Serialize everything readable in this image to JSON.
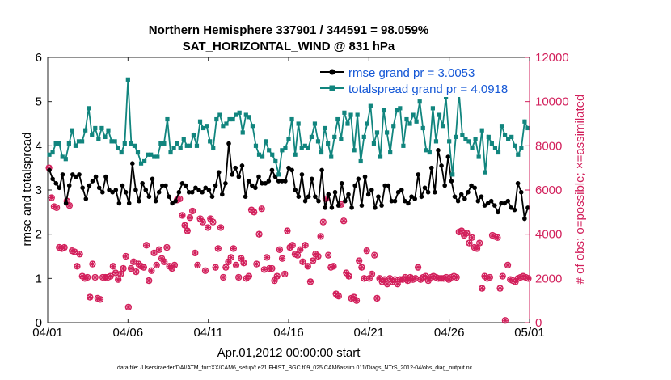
{
  "chart_data": {
    "type": "line",
    "title": [
      "Northern Hemisphere 337901 / 344591 = 98.059%",
      "SAT_HORIZONTAL_WIND @ 831 hPa"
    ],
    "xlabel": "Apr.01,2012 00:00:00 start",
    "ylabel_left": "rmse and totalspread",
    "ylabel_right": "# of obs: o=possible; ×=assimilated",
    "ylim_left": [
      0,
      6
    ],
    "ylim_right": [
      0,
      12000
    ],
    "yticks_left": [
      "0",
      "1",
      "2",
      "3",
      "4",
      "5",
      "6"
    ],
    "yticks_right": [
      "0",
      "2000",
      "4000",
      "6000",
      "8000",
      "10000",
      "12000"
    ],
    "xlim_days": [
      0,
      30
    ],
    "xticks": [
      {
        "day": 0,
        "label": "04/01"
      },
      {
        "day": 5,
        "label": "04/06"
      },
      {
        "day": 10,
        "label": "04/11"
      },
      {
        "day": 15,
        "label": "04/16"
      },
      {
        "day": 20,
        "label": "04/21"
      },
      {
        "day": 25,
        "label": "04/26"
      },
      {
        "day": 30,
        "label": "05/01"
      }
    ],
    "footnote": "data file: /Users/raeder/DAI/ATM_forcXX/CAM6_setup/f.e21.FHIST_BGC.f09_025.CAM6assim.011/Diags_NTrS_2012-04/obs_diag_output.nc",
    "legend": [
      "rmse grand pr = 3.0053",
      "totalspread grand pr = 4.0918"
    ],
    "series": [
      {
        "name": "rmse",
        "color": "#000000",
        "axis": "left",
        "values": [
          3.45,
          3.25,
          3.15,
          3.05,
          3.35,
          2.7,
          3.1,
          3.35,
          3.3,
          3.35,
          3.05,
          2.8,
          3.1,
          3.2,
          3.3,
          3.05,
          2.95,
          3.3,
          3.0,
          2.95,
          3.0,
          2.7,
          3.1,
          2.95,
          2.7,
          3.6,
          3.0,
          2.75,
          3.15,
          3.0,
          2.85,
          3.25,
          2.75,
          2.95,
          3.1,
          3.1,
          2.85,
          2.7,
          2.75,
          2.95,
          3.15,
          3.1,
          2.95,
          2.95,
          3.05,
          3.0,
          2.95,
          3.05,
          3.0,
          2.85,
          3.1,
          3.4,
          2.9,
          3.15,
          4.05,
          3.35,
          3.5,
          3.3,
          3.55,
          2.85,
          3.2,
          3.1,
          3.05,
          3.3,
          3.15,
          3.15,
          3.2,
          3.45,
          3.3,
          3.2,
          3.2,
          3.2,
          3.5,
          3.45,
          3.0,
          2.85,
          3.35,
          2.75,
          2.85,
          3.25,
          2.85,
          2.75,
          3.45,
          2.6,
          2.9,
          2.6,
          2.95,
          2.65,
          3.15,
          2.75,
          2.9,
          2.6,
          3.1,
          3.25,
          2.65,
          3.3,
          2.9,
          3.0,
          2.6,
          2.85,
          2.65,
          3.1,
          3.1,
          2.75,
          2.75,
          2.95,
          3.0,
          2.75,
          2.7,
          2.85,
          2.8,
          3.35,
          2.85,
          3.05,
          2.95,
          3.5,
          2.95,
          3.9,
          3.55,
          3.1,
          3.75,
          3.2,
          2.85,
          2.75,
          2.9,
          2.8,
          2.95,
          3.1,
          3.05,
          2.75,
          2.85,
          2.65,
          2.7,
          2.75,
          2.65,
          2.5,
          2.7,
          2.7,
          2.75,
          2.6,
          2.55,
          3.15,
          2.95,
          2.35,
          2.6
        ]
      },
      {
        "name": "totalspread",
        "color": "#11857e",
        "axis": "left",
        "values": [
          3.8,
          3.85,
          4.05,
          4.05,
          3.75,
          3.7,
          4.05,
          4.35,
          4.0,
          4.1,
          4.1,
          4.35,
          4.85,
          4.25,
          4.4,
          4.15,
          4.4,
          4.2,
          4.35,
          4.1,
          4.1,
          3.95,
          3.85,
          4.05,
          5.5,
          4.05,
          4.0,
          3.85,
          3.6,
          3.65,
          3.8,
          3.8,
          3.75,
          3.75,
          4.05,
          4.05,
          4.6,
          3.85,
          3.95,
          4.05,
          3.95,
          4.15,
          4.0,
          4.0,
          4.25,
          4.0,
          4.55,
          4.4,
          4.45,
          4.1,
          3.95,
          4.6,
          4.7,
          4.45,
          4.5,
          4.6,
          4.6,
          4.7,
          4.75,
          4.3,
          4.7,
          4.65,
          4.45,
          4.0,
          3.8,
          3.75,
          4.1,
          3.9,
          3.8,
          3.65,
          3.35,
          3.9,
          3.95,
          4.15,
          4.6,
          3.8,
          4.5,
          3.95,
          4.0,
          3.95,
          4.2,
          4.5,
          4.1,
          3.85,
          4.4,
          4.05,
          3.75,
          4.2,
          4.6,
          4.15,
          4.75,
          4.5,
          4.7,
          3.9,
          4.7,
          3.65,
          4.2,
          4.5,
          4.9,
          4.05,
          4.3,
          3.75,
          4.8,
          4.3,
          3.85,
          4.45,
          4.8,
          4.85,
          4.0,
          4.6,
          4.5,
          4.7,
          4.55,
          5.0,
          4.4,
          3.9,
          3.85,
          4.85,
          4.1,
          4.7,
          4.45,
          5.1,
          4.1,
          3.35,
          4.2,
          5.2,
          4.25,
          4.15,
          4.1,
          3.95,
          4.15,
          3.75,
          4.35,
          3.4,
          4.2,
          4.05,
          3.95,
          3.85,
          4.45,
          4.25,
          4.15,
          4.2,
          4.0,
          3.8,
          3.95,
          4.55,
          4.4
        ]
      },
      {
        "name": "obs_possible",
        "color": "#d21f5b",
        "axis": "right",
        "marker": "o",
        "values": [
          7000,
          5650,
          5250,
          5200,
          3400,
          3350,
          3400,
          5500,
          5300,
          3250,
          3200,
          2550,
          3100,
          2100,
          2000,
          2050,
          1150,
          2650,
          2050,
          1100,
          1050,
          2050,
          2050,
          2050,
          2100,
          2550,
          2250,
          1950,
          2200,
          2450,
          3000,
          700,
          2450,
          2750,
          2300,
          2650,
          2550,
          2500,
          3500,
          1900,
          2350,
          3150,
          2600,
          3300,
          2900,
          2750,
          3400,
          2550,
          2450,
          2600,
          5550,
          5600,
          4850,
          4400,
          4150,
          4750,
          5050,
          3150,
          2600,
          4700,
          4550,
          2350,
          4300,
          4700,
          4550,
          2500,
          3350,
          4300,
          2050,
          2500,
          2750,
          2950,
          3350,
          2600,
          2050,
          2900,
          2700,
          2000,
          2100,
          5100,
          5000,
          2650,
          4000,
          5150,
          2400,
          2950,
          2450,
          2450,
          1900,
          2100,
          3300,
          2900,
          2200,
          4150,
          3400,
          3500,
          3100,
          3050,
          3300,
          2750,
          3500,
          2550,
          1850,
          2800,
          3100,
          3000,
          3900,
          4550,
          5600,
          3050,
          2500,
          2550,
          1300,
          1200,
          5350,
          4600,
          2250,
          2100,
          1100,
          1150,
          1000,
          2800,
          2500,
          2000,
          3250,
          2000,
          2200,
          3050,
          1100,
          2000,
          1850,
          1950,
          1750,
          2000,
          1850,
          1950,
          1750,
          1950,
          1950,
          2050,
          1900,
          2050,
          1950,
          2000,
          2500,
          1950,
          2050,
          2100,
          1900,
          2050,
          2100,
          2050,
          2000,
          2000,
          2000,
          2050,
          1950,
          2050,
          2100,
          2050,
          4100,
          4150,
          3950,
          4050,
          3600,
          3850,
          3400,
          3350,
          3600,
          1550,
          2100,
          2000,
          2050,
          3950,
          3900,
          3850,
          1550,
          2100,
          100,
          2600,
          1950,
          1900,
          1850,
          2000,
          2050,
          2100,
          2050,
          2000
        ]
      }
    ]
  }
}
